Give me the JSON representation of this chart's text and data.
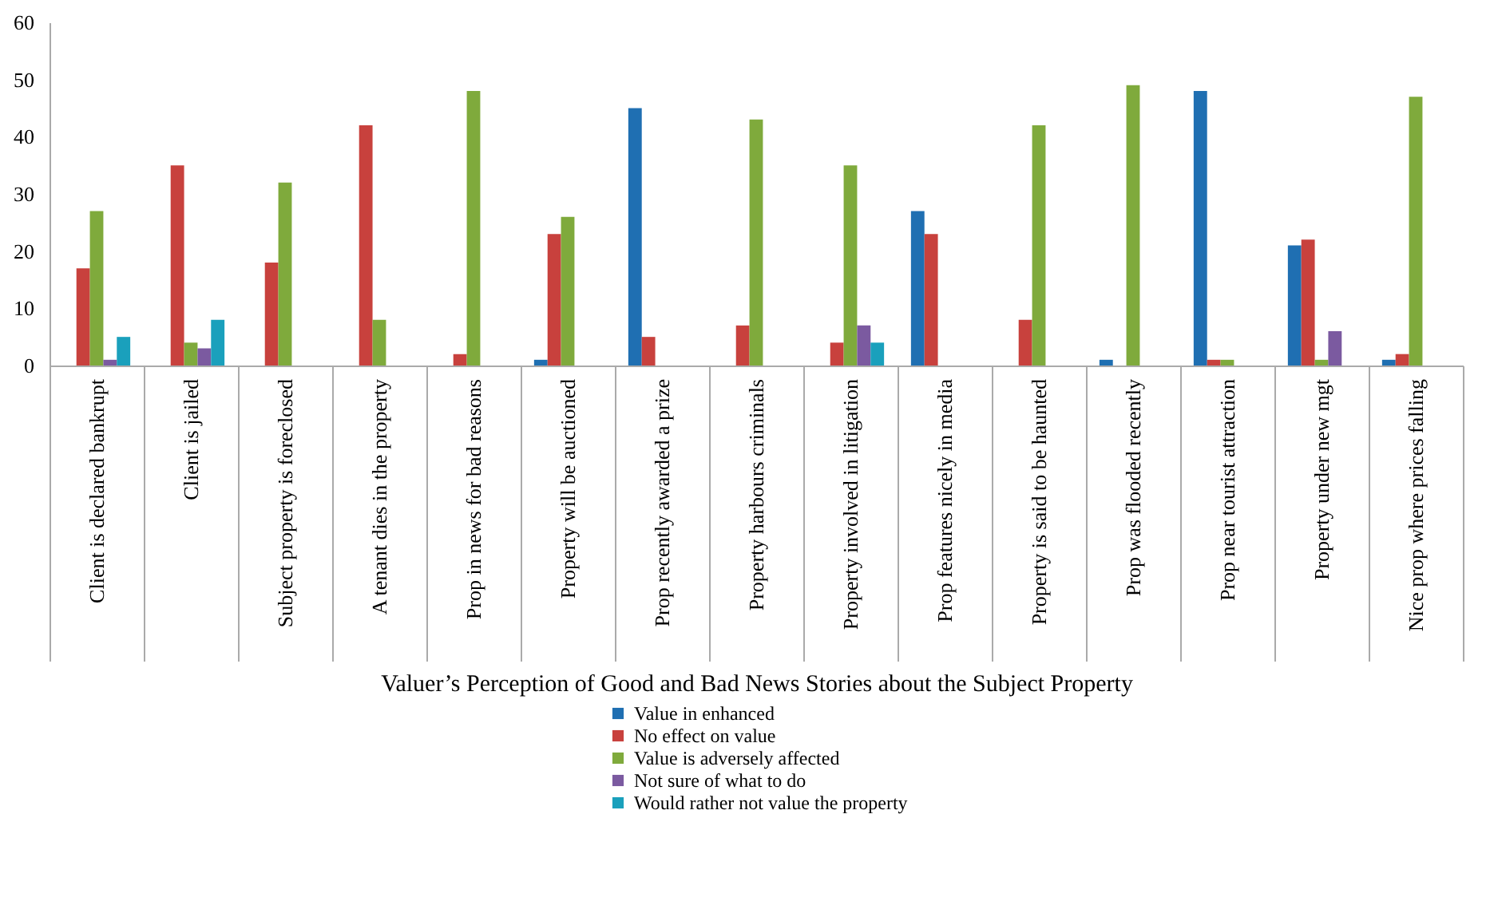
{
  "chart_data": {
    "type": "bar",
    "xlabel": "Valuer’s Perception of Good and Bad News Stories about the Subject Property",
    "categories": [
      "Client is declared bankrupt",
      "Client is jailed",
      "Subject property is foreclosed",
      "A tenant dies in the property",
      "Prop in news for bad reasons",
      "Property will be auctioned",
      "Prop recently awarded a prize",
      "Property harbours criminals",
      "Property involved in litigation",
      "Prop features nicely in media",
      "Property is said to be haunted",
      "Prop was flooded recently",
      "Prop near tourist attraction",
      "Property under new mgt",
      "Nice prop where prices falling"
    ],
    "series": [
      {
        "name": "Value in enhanced",
        "color": "#1f6fb2",
        "values": [
          null,
          null,
          null,
          null,
          null,
          1,
          45,
          null,
          null,
          27,
          null,
          1,
          48,
          21,
          1
        ]
      },
      {
        "name": "No effect on value",
        "color": "#c8413d",
        "values": [
          17,
          35,
          18,
          42,
          2,
          23,
          5,
          7,
          4,
          23,
          8,
          null,
          1,
          22,
          2
        ]
      },
      {
        "name": "Value is adversely affected",
        "color": "#7faa3c",
        "values": [
          27,
          4,
          32,
          8,
          48,
          26,
          null,
          43,
          35,
          null,
          42,
          49,
          1,
          1,
          47
        ]
      },
      {
        "name": "Not sure of what to do",
        "color": "#7b5aa0",
        "values": [
          1,
          3,
          null,
          null,
          null,
          null,
          null,
          null,
          7,
          null,
          null,
          null,
          null,
          6,
          null
        ]
      },
      {
        "name": "Would rather not value the property",
        "color": "#1aa0bc",
        "values": [
          5,
          8,
          null,
          null,
          null,
          null,
          null,
          null,
          4,
          null,
          null,
          null,
          null,
          null,
          null
        ]
      }
    ],
    "ylim": [
      0,
      60
    ],
    "yticks": [
      0,
      10,
      20,
      30,
      40,
      50,
      60
    ],
    "grid": false,
    "legend": "bottom"
  }
}
